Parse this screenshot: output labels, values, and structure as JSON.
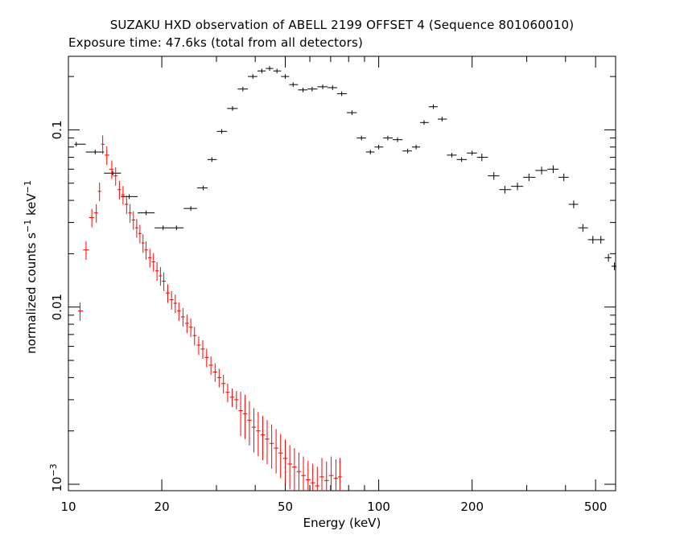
{
  "header": {
    "title": "SUZAKU HXD observation of ABELL 2199 OFFSET 4 (Sequence 801060010)",
    "subtitle": "Exposure time: 47.6ks (total from all detectors)"
  },
  "chart_data": {
    "type": "scatter",
    "title": "SUZAKU HXD observation of ABELL 2199 OFFSET 4 (Sequence 801060010)",
    "subtitle": "Exposure time: 47.6ks (total from all detectors)",
    "xlabel": "Energy (keV)",
    "ylabel_parts": [
      "normalized counts s",
      "−1",
      " keV",
      "−1"
    ],
    "x_scale": "log",
    "y_scale": "log",
    "xlim": [
      10,
      580
    ],
    "ylim": [
      0.00092,
      0.26
    ],
    "grid": false,
    "x_ticks": [
      {
        "value": 10,
        "label": "10"
      },
      {
        "value": 20,
        "label": "20"
      },
      {
        "value": 50,
        "label": "50"
      },
      {
        "value": 100,
        "label": "100"
      },
      {
        "value": 200,
        "label": "200"
      },
      {
        "value": 500,
        "label": "500"
      }
    ],
    "y_ticks": [
      {
        "value": 0.1,
        "label": "0.1"
      },
      {
        "value": 0.01,
        "label": "0.01"
      }
    ],
    "y_tick_exp": {
      "value": 0.001,
      "base": "10",
      "exp": "−3"
    },
    "series": [
      {
        "color": "#000000",
        "points": [
          [
            10.6,
            0.083
          ],
          [
            12.2,
            0.075
          ],
          [
            13.9,
            0.057
          ],
          [
            15.7,
            0.042
          ],
          [
            17.8,
            0.034
          ],
          [
            20.2,
            0.028
          ],
          [
            22.3,
            0.028
          ],
          [
            24.8,
            0.036
          ],
          [
            27.2,
            0.047
          ],
          [
            29.0,
            0.068
          ],
          [
            31.2,
            0.098
          ],
          [
            33.8,
            0.132
          ],
          [
            36.5,
            0.17
          ],
          [
            39.3,
            0.2
          ],
          [
            42.0,
            0.215
          ],
          [
            44.5,
            0.222
          ],
          [
            47.0,
            0.215
          ],
          [
            50.0,
            0.2
          ],
          [
            53.0,
            0.18
          ],
          [
            57.0,
            0.168
          ],
          [
            61.0,
            0.17
          ],
          [
            66.0,
            0.175
          ],
          [
            71.0,
            0.173
          ],
          [
            76.0,
            0.16
          ],
          [
            82.0,
            0.125
          ],
          [
            88.0,
            0.09
          ],
          [
            94.0,
            0.075
          ],
          [
            100.0,
            0.08
          ],
          [
            107.0,
            0.09
          ],
          [
            115.0,
            0.088
          ],
          [
            124.0,
            0.076
          ],
          [
            132.0,
            0.08
          ],
          [
            140.0,
            0.11
          ],
          [
            150.0,
            0.135
          ],
          [
            160.0,
            0.115
          ],
          [
            172.0,
            0.072
          ],
          [
            185.0,
            0.068
          ],
          [
            200.0,
            0.074
          ],
          [
            215.0,
            0.07
          ],
          [
            235.0,
            0.055
          ],
          [
            255.0,
            0.046
          ],
          [
            280.0,
            0.048
          ],
          [
            305.0,
            0.054
          ],
          [
            335.0,
            0.059
          ],
          [
            365.0,
            0.06
          ],
          [
            395.0,
            0.054
          ],
          [
            425.0,
            0.038
          ],
          [
            455.0,
            0.028
          ],
          [
            490.0,
            0.024
          ],
          [
            520.0,
            0.024
          ],
          [
            550.0,
            0.019
          ],
          [
            575.0,
            0.017
          ]
        ]
      },
      {
        "color": "#ff0000",
        "points": [
          [
            10.9,
            0.0095
          ],
          [
            11.4,
            0.021
          ],
          [
            11.9,
            0.032
          ],
          [
            12.3,
            0.034
          ],
          [
            12.6,
            0.045
          ],
          [
            12.9,
            0.083
          ],
          [
            13.3,
            0.072
          ],
          [
            13.8,
            0.06
          ],
          [
            14.2,
            0.055
          ],
          [
            14.6,
            0.046
          ],
          [
            15.0,
            0.043
          ],
          [
            15.4,
            0.038
          ],
          [
            15.8,
            0.034
          ],
          [
            16.2,
            0.031
          ],
          [
            16.6,
            0.028
          ],
          [
            17.0,
            0.026
          ],
          [
            17.4,
            0.023
          ],
          [
            17.8,
            0.021
          ],
          [
            18.3,
            0.019
          ],
          [
            18.8,
            0.018
          ],
          [
            19.3,
            0.016
          ],
          [
            19.8,
            0.015
          ],
          [
            20.3,
            0.014
          ],
          [
            20.9,
            0.012
          ],
          [
            21.5,
            0.011
          ],
          [
            22.1,
            0.0105
          ],
          [
            22.7,
            0.0095
          ],
          [
            23.4,
            0.0088
          ],
          [
            24.1,
            0.0081
          ],
          [
            24.8,
            0.0077
          ],
          [
            25.5,
            0.0069
          ],
          [
            26.3,
            0.0061
          ],
          [
            27.1,
            0.0058
          ],
          [
            27.9,
            0.0052
          ],
          [
            28.8,
            0.0047
          ],
          [
            29.7,
            0.0043
          ],
          [
            30.6,
            0.004
          ],
          [
            31.6,
            0.0037
          ],
          [
            32.6,
            0.0033
          ],
          [
            33.7,
            0.0031
          ],
          [
            34.8,
            0.003
          ],
          [
            35.9,
            0.0026
          ],
          [
            37.1,
            0.0025
          ],
          [
            38.3,
            0.0023
          ],
          [
            39.6,
            0.0021
          ],
          [
            40.9,
            0.002
          ],
          [
            42.3,
            0.0019
          ],
          [
            43.7,
            0.0018
          ],
          [
            45.2,
            0.0017
          ],
          [
            46.7,
            0.0016
          ],
          [
            48.3,
            0.0015
          ],
          [
            50.0,
            0.0014
          ],
          [
            51.7,
            0.0013
          ],
          [
            53.5,
            0.00125
          ],
          [
            55.3,
            0.00118
          ],
          [
            57.2,
            0.00112
          ],
          [
            59.2,
            0.00106
          ],
          [
            61.3,
            0.00102
          ],
          [
            63.4,
            0.00098
          ],
          [
            65.6,
            0.0011
          ],
          [
            67.9,
            0.00105
          ],
          [
            70.3,
            0.00112
          ],
          [
            72.8,
            0.00108
          ],
          [
            75.0,
            0.0011
          ]
        ]
      }
    ]
  }
}
